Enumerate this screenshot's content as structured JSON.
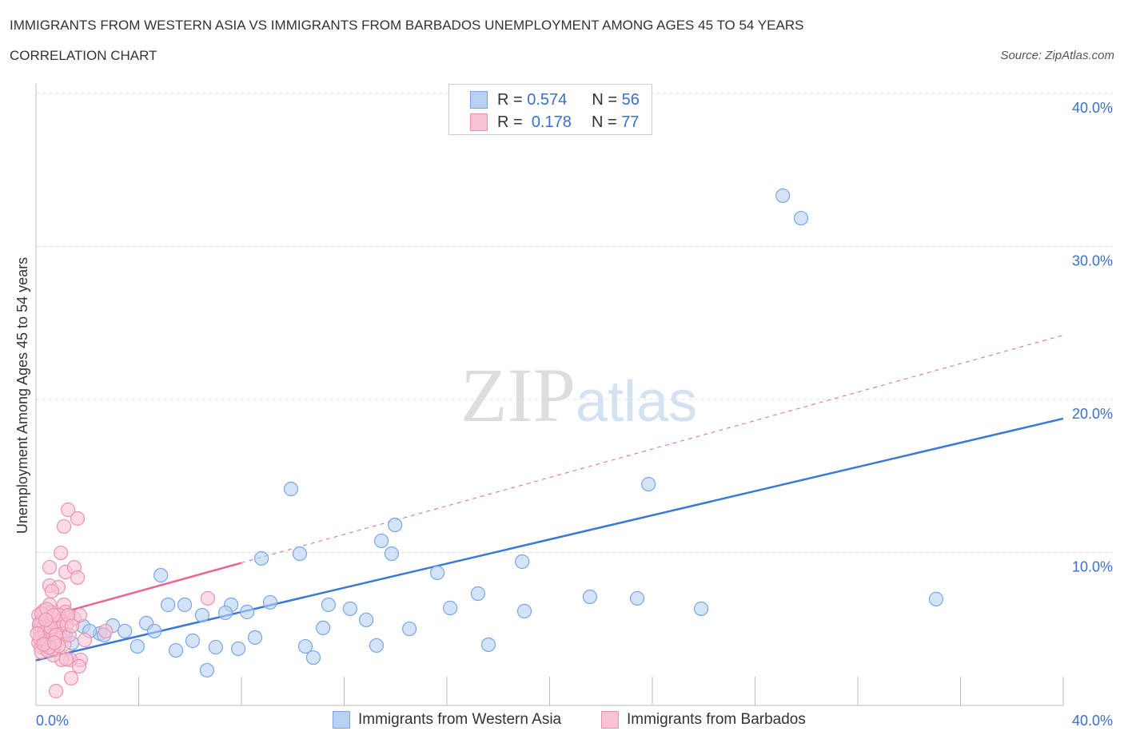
{
  "title": "IMMIGRANTS FROM WESTERN ASIA VS IMMIGRANTS FROM BARBADOS UNEMPLOYMENT AMONG AGES 45 TO 54 YEARS",
  "subtitle": "CORRELATION CHART",
  "source": "Source: ZipAtlas.com",
  "watermark": "ZIPatlas",
  "colors": {
    "blue": "#3a78d8",
    "pink": "#e8668e",
    "blue_fill": "#b8d1f3",
    "pink_fill": "#f8c3d3"
  },
  "legend": {
    "r_label": "R =",
    "n_label": "N =",
    "rows": [
      {
        "r": "0.574",
        "n": "56"
      },
      {
        "r": "0.178",
        "n": "77"
      }
    ]
  },
  "chart_data": {
    "type": "scatter",
    "xlabel": "",
    "ylabel": "Unemployment Among Ages 45 to 54 years",
    "xlim": [
      0,
      40
    ],
    "ylim": [
      0,
      40
    ],
    "x_tick_labels": [
      "0.0%",
      "40.0%"
    ],
    "y_ticks": [
      10,
      20,
      30,
      40
    ],
    "y_tick_labels": [
      "10.0%",
      "20.0%",
      "30.0%",
      "40.0%"
    ],
    "grid": true,
    "legend_position": "top-center",
    "series": [
      {
        "name": "Immigrants from Western Asia",
        "trend": {
          "intercept": 2.95,
          "slope": 0.395,
          "x_end": 40
        },
        "points": [
          [
            29.08,
            33.32
          ],
          [
            29.79,
            31.85
          ],
          [
            9.93,
            14.15
          ],
          [
            23.85,
            14.46
          ],
          [
            13.98,
            11.8
          ],
          [
            13.45,
            10.76
          ],
          [
            13.85,
            9.92
          ],
          [
            10.27,
            9.92
          ],
          [
            8.78,
            9.61
          ],
          [
            4.86,
            8.51
          ],
          [
            15.63,
            8.67
          ],
          [
            18.93,
            9.4
          ],
          [
            17.21,
            7.31
          ],
          [
            21.57,
            7.1
          ],
          [
            23.41,
            7.0
          ],
          [
            35.05,
            6.95
          ],
          [
            25.9,
            6.32
          ],
          [
            19.02,
            6.16
          ],
          [
            16.13,
            6.37
          ],
          [
            12.23,
            6.32
          ],
          [
            12.86,
            5.59
          ],
          [
            11.39,
            6.58
          ],
          [
            9.12,
            6.74
          ],
          [
            7.6,
            6.58
          ],
          [
            8.22,
            6.11
          ],
          [
            7.38,
            6.06
          ],
          [
            6.47,
            5.9
          ],
          [
            5.79,
            6.58
          ],
          [
            5.14,
            6.58
          ],
          [
            4.3,
            5.38
          ],
          [
            4.61,
            4.86
          ],
          [
            2.99,
            5.22
          ],
          [
            3.46,
            4.86
          ],
          [
            2.49,
            4.7
          ],
          [
            2.65,
            4.6
          ],
          [
            1.84,
            5.17
          ],
          [
            2.09,
            4.86
          ],
          [
            1.15,
            4.6
          ],
          [
            1.4,
            4.07
          ],
          [
            0.87,
            4.86
          ],
          [
            3.95,
            3.86
          ],
          [
            5.45,
            3.6
          ],
          [
            6.1,
            4.23
          ],
          [
            7.0,
            3.81
          ],
          [
            7.88,
            3.71
          ],
          [
            8.53,
            4.44
          ],
          [
            11.18,
            5.07
          ],
          [
            10.49,
            3.86
          ],
          [
            10.8,
            3.13
          ],
          [
            13.26,
            3.92
          ],
          [
            14.54,
            5.01
          ],
          [
            17.62,
            3.97
          ],
          [
            6.66,
            2.3
          ],
          [
            0.53,
            4.33
          ],
          [
            0.31,
            4.6
          ],
          [
            0.16,
            5.22
          ]
        ]
      },
      {
        "name": "Immigrants from Barbados",
        "trend": {
          "intercept": 5.6,
          "slope": 0.465,
          "x_solid_end": 8,
          "x_end": 40
        },
        "points": [
          [
            1.25,
            12.79
          ],
          [
            1.62,
            12.22
          ],
          [
            1.09,
            11.7
          ],
          [
            0.97,
            9.97
          ],
          [
            0.53,
            9.03
          ],
          [
            1.15,
            8.72
          ],
          [
            1.49,
            9.03
          ],
          [
            1.62,
            8.36
          ],
          [
            0.53,
            7.83
          ],
          [
            0.87,
            7.73
          ],
          [
            0.62,
            7.47
          ],
          [
            1.09,
            6.58
          ],
          [
            1.15,
            6.11
          ],
          [
            6.69,
            7.0
          ],
          [
            0.53,
            6.58
          ],
          [
            1.49,
            5.69
          ],
          [
            1.71,
            5.9
          ],
          [
            0.93,
            5.64
          ],
          [
            1.74,
            2.98
          ],
          [
            1.34,
            2.98
          ],
          [
            1.0,
            2.98
          ],
          [
            1.68,
            2.56
          ],
          [
            1.37,
            1.78
          ],
          [
            0.78,
            0.94
          ],
          [
            0.68,
            3.29
          ],
          [
            1.9,
            4.28
          ],
          [
            2.71,
            4.86
          ],
          [
            1.18,
            3.03
          ],
          [
            0.1,
            5.9
          ],
          [
            0.2,
            5.5
          ],
          [
            0.3,
            5.2
          ],
          [
            0.15,
            4.9
          ],
          [
            0.25,
            4.6
          ],
          [
            0.35,
            4.3
          ],
          [
            0.1,
            4.1
          ],
          [
            0.2,
            3.8
          ],
          [
            0.4,
            5.8
          ],
          [
            0.5,
            5.4
          ],
          [
            0.45,
            5.0
          ],
          [
            0.55,
            4.7
          ],
          [
            0.6,
            4.4
          ],
          [
            0.5,
            4.1
          ],
          [
            0.4,
            3.9
          ],
          [
            0.7,
            5.6
          ],
          [
            0.75,
            5.2
          ],
          [
            0.8,
            4.8
          ],
          [
            0.7,
            4.5
          ],
          [
            0.85,
            4.2
          ],
          [
            0.9,
            5.9
          ],
          [
            0.95,
            5.5
          ],
          [
            1.0,
            5.1
          ],
          [
            1.05,
            4.7
          ],
          [
            0.95,
            4.4
          ],
          [
            1.1,
            4.0
          ],
          [
            0.3,
            6.2
          ],
          [
            0.6,
            6.1
          ],
          [
            0.2,
            3.5
          ],
          [
            0.45,
            3.6
          ],
          [
            0.65,
            3.7
          ],
          [
            0.12,
            5.3
          ],
          [
            0.33,
            4.8
          ],
          [
            0.58,
            5.1
          ],
          [
            0.78,
            4.6
          ],
          [
            0.88,
            3.9
          ],
          [
            0.22,
            6.0
          ],
          [
            0.42,
            6.3
          ],
          [
            0.68,
            5.9
          ],
          [
            0.15,
            4.4
          ],
          [
            1.2,
            5.3
          ],
          [
            1.3,
            4.6
          ],
          [
            1.25,
            5.9
          ],
          [
            0.05,
            4.7
          ],
          [
            0.5,
            3.8
          ],
          [
            0.3,
            4.0
          ],
          [
            0.72,
            4.1
          ],
          [
            1.4,
            5.2
          ],
          [
            0.38,
            5.6
          ]
        ]
      }
    ]
  },
  "bottom_legend": [
    "Immigrants from Western Asia",
    "Immigrants from Barbados"
  ]
}
